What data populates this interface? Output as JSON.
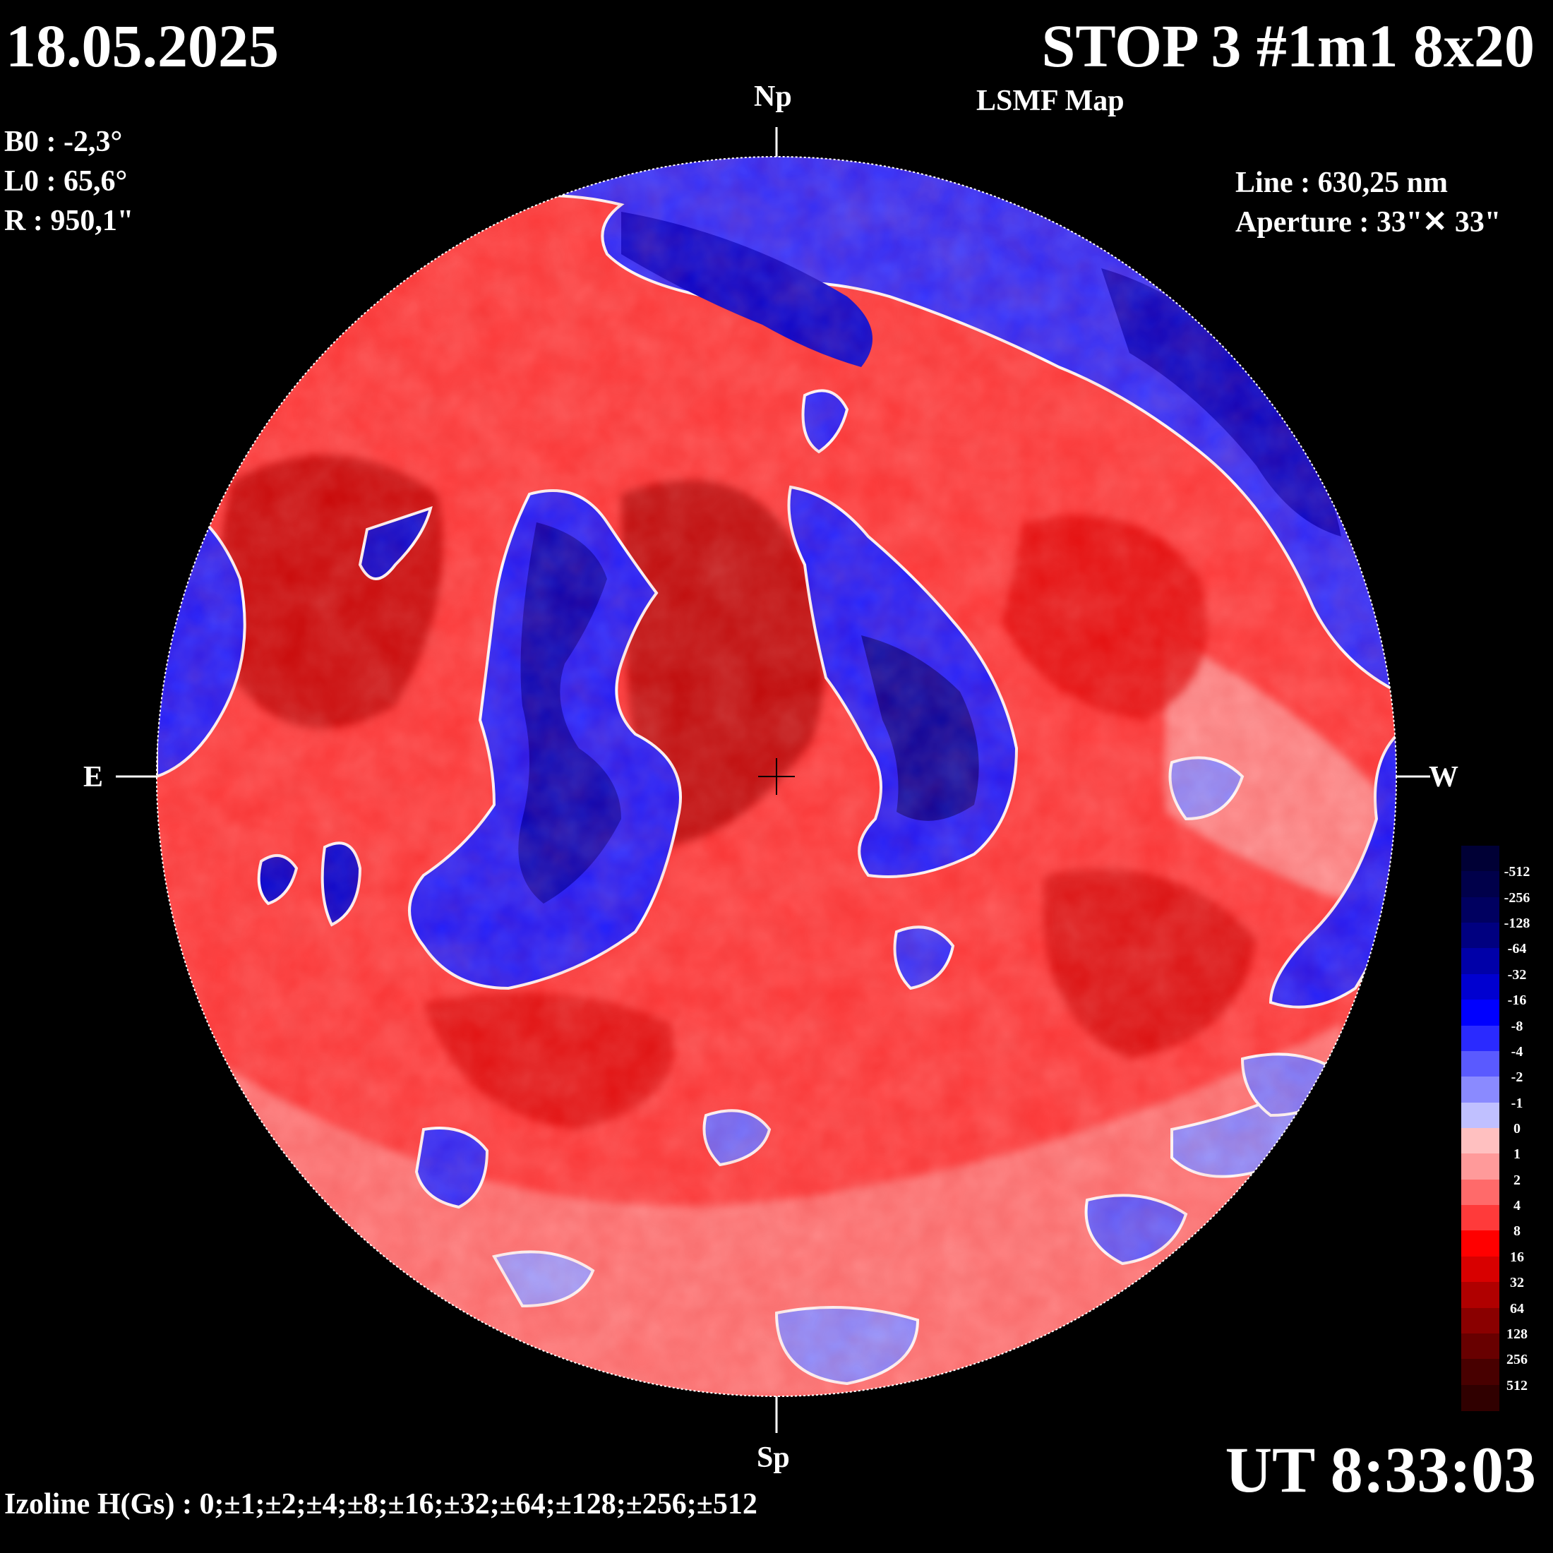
{
  "header": {
    "date": "18.05.2025",
    "title": "STOP 3 #1m1 8x20",
    "subtitle": "LSMF  Map"
  },
  "params": {
    "b0": "B0 : -2,3°",
    "l0": "L0 : 65,6°",
    "r": "R  : 950,1\""
  },
  "instrument": {
    "line": "Line :  630,25 nm",
    "aperture": "Aperture : 33\"✕ 33\""
  },
  "compass": {
    "north": "Np",
    "south": "Sp",
    "east": "E",
    "west": "W"
  },
  "time": "UT 8:33:03",
  "izoline": "Izoline H(Gs) : 0;±1;±2;±4;±8;±16;±32;±64;±128;±256;±512",
  "colorbar": {
    "labels": [
      "-512",
      "-256",
      "-128",
      "-64",
      "-32",
      "-16",
      "-8",
      "-4",
      "-2",
      "-1",
      "0",
      "1",
      "2",
      "4",
      "8",
      "16",
      "32",
      "64",
      "128",
      "256",
      "512"
    ],
    "colors": [
      "#000035",
      "#00004a",
      "#000060",
      "#000080",
      "#0000a8",
      "#0000d0",
      "#0000ff",
      "#2a2aff",
      "#5a5aff",
      "#8a8aff",
      "#c0c0ff",
      "#ffc0c0",
      "#ff9a9a",
      "#ff6a6a",
      "#ff3a3a",
      "#ff0000",
      "#d80000",
      "#b00000",
      "#8a0000",
      "#680000",
      "#480000",
      "#300000"
    ]
  },
  "map_colors": {
    "background": "#000000",
    "positive_base": "#ff3030",
    "positive_strong": "#b00000",
    "positive_weak": "#ffb0b0",
    "negative_base": "#2020ff",
    "negative_strong": "#00008a",
    "negative_weak": "#a8a8ff",
    "contour_zero": "#ffffff"
  }
}
